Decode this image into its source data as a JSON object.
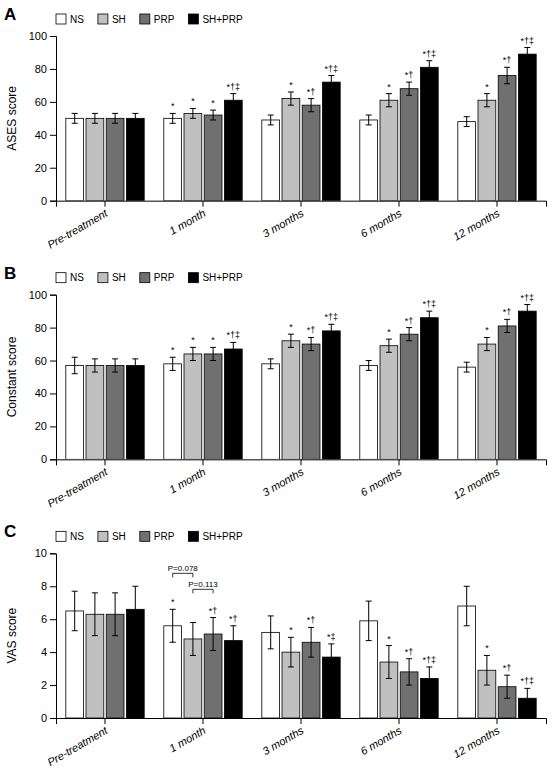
{
  "chart_data": [
    {
      "type": "bar",
      "title": "A",
      "categories": [
        "Pre-treatment",
        "1 month",
        "3 months",
        "6 months",
        "12 months"
      ],
      "series": [
        {
          "name": "NS",
          "color": "#ffffff",
          "values": [
            50,
            50,
            49,
            49,
            48
          ],
          "errors": [
            3,
            3,
            3,
            3,
            3
          ],
          "annotations": [
            null,
            "*",
            null,
            null,
            null
          ]
        },
        {
          "name": "SH",
          "color": "#c0c0c0",
          "values": [
            50,
            53,
            62,
            61,
            61
          ],
          "errors": [
            3,
            3,
            4,
            4,
            4
          ],
          "annotations": [
            null,
            "*",
            "*",
            "*",
            "*"
          ]
        },
        {
          "name": "PRP",
          "color": "#707070",
          "values": [
            50,
            52,
            58,
            68,
            76
          ],
          "errors": [
            3,
            3,
            4,
            4,
            5
          ],
          "annotations": [
            null,
            "*",
            "*†",
            "*†",
            "*†"
          ]
        },
        {
          "name": "SH+PRP",
          "color": "#000000",
          "values": [
            50,
            61,
            72,
            81,
            89
          ],
          "errors": [
            3,
            4,
            4,
            4,
            4
          ],
          "annotations": [
            null,
            "*†‡",
            "*†‡",
            "*†‡",
            "*†‡"
          ]
        }
      ],
      "ylabel": "ASES score",
      "ylim": [
        0,
        100
      ],
      "yticks": [
        0,
        20,
        40,
        60,
        80,
        100
      ],
      "legend": "upper left",
      "grid": false
    },
    {
      "type": "bar",
      "title": "B",
      "categories": [
        "Pre-treatment",
        "1 month",
        "3 months",
        "6 months",
        "12 months"
      ],
      "series": [
        {
          "name": "NS",
          "color": "#ffffff",
          "values": [
            57,
            58,
            58,
            57,
            56
          ],
          "errors": [
            5,
            4,
            3,
            3,
            3
          ],
          "annotations": [
            null,
            "*",
            null,
            null,
            null
          ]
        },
        {
          "name": "SH",
          "color": "#c0c0c0",
          "values": [
            57,
            64,
            72,
            69,
            70
          ],
          "errors": [
            4,
            4,
            4,
            4,
            4
          ],
          "annotations": [
            null,
            "*",
            "*",
            "*",
            "*"
          ]
        },
        {
          "name": "PRP",
          "color": "#707070",
          "values": [
            57,
            64,
            70,
            76,
            81
          ],
          "errors": [
            4,
            4,
            4,
            4,
            4
          ],
          "annotations": [
            null,
            "*",
            "*†",
            "*†",
            "*†"
          ]
        },
        {
          "name": "SH+PRP",
          "color": "#000000",
          "values": [
            57,
            67,
            78,
            86,
            90
          ],
          "errors": [
            4,
            4,
            4,
            4,
            4
          ],
          "annotations": [
            null,
            "*†‡",
            "*†‡",
            "*†‡",
            "*†‡"
          ]
        }
      ],
      "ylabel": "Constant score",
      "ylim": [
        0,
        100
      ],
      "yticks": [
        0,
        20,
        40,
        60,
        80,
        100
      ],
      "legend": "upper left",
      "grid": false
    },
    {
      "type": "bar",
      "title": "C",
      "categories": [
        "Pre-treatment",
        "1 month",
        "3 months",
        "6 months",
        "12 months"
      ],
      "series": [
        {
          "name": "NS",
          "color": "#ffffff",
          "values": [
            6.5,
            5.6,
            5.2,
            5.9,
            6.8
          ],
          "errors": [
            1.2,
            1.0,
            1.0,
            1.2,
            1.2
          ],
          "annotations": [
            null,
            "*",
            null,
            null,
            null
          ]
        },
        {
          "name": "SH",
          "color": "#c0c0c0",
          "values": [
            6.3,
            4.8,
            4.0,
            3.4,
            2.9
          ],
          "errors": [
            1.3,
            1.0,
            0.9,
            1.0,
            0.9
          ],
          "annotations": [
            null,
            null,
            "*",
            "*",
            "*"
          ]
        },
        {
          "name": "PRP",
          "color": "#707070",
          "values": [
            6.3,
            5.1,
            4.6,
            2.8,
            1.9
          ],
          "errors": [
            1.3,
            1.0,
            0.9,
            0.8,
            0.7
          ],
          "annotations": [
            null,
            "*†",
            "*†",
            "*†",
            "*†"
          ]
        },
        {
          "name": "SH+PRP",
          "color": "#000000",
          "values": [
            6.6,
            4.7,
            3.7,
            2.4,
            1.2
          ],
          "errors": [
            1.4,
            0.9,
            0.8,
            0.7,
            0.6
          ],
          "annotations": [
            null,
            "*†",
            "*‡",
            "*†‡",
            "*†‡"
          ]
        }
      ],
      "annotations": [
        {
          "text": "P=0.078",
          "category": "1 month",
          "between": [
            "NS",
            "SH"
          ]
        },
        {
          "text": "P=0.113",
          "category": "1 month",
          "between": [
            "SH",
            "PRP"
          ]
        }
      ],
      "ylabel": "VAS score",
      "ylim": [
        0,
        10
      ],
      "yticks": [
        0,
        2,
        4,
        6,
        8,
        10
      ],
      "legend": "upper left",
      "grid": false
    }
  ]
}
